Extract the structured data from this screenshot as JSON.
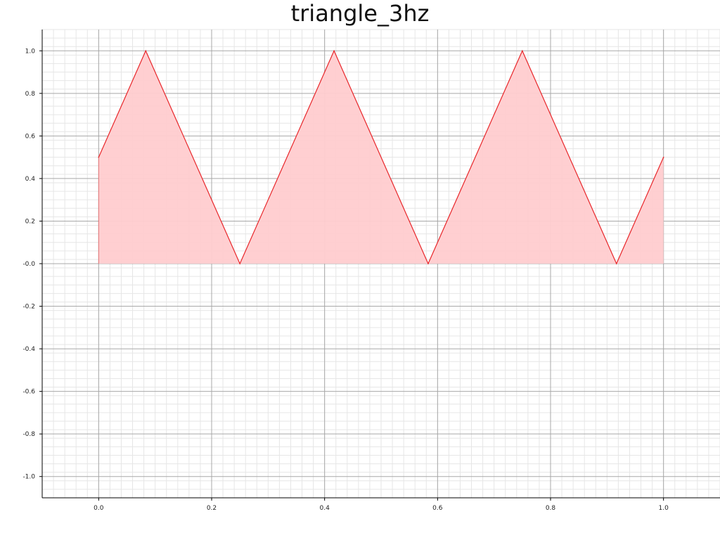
{
  "chart_data": {
    "type": "area",
    "title": "triangle_3hz",
    "xlabel": "",
    "ylabel": "",
    "xlim": [
      -0.1,
      1.1
    ],
    "ylim": [
      -1.1,
      1.1
    ],
    "x_ticks": [
      "0.0",
      "0.2",
      "0.4",
      "0.6",
      "0.8",
      "1.0"
    ],
    "y_ticks": [
      "1.0",
      "0.8",
      "0.6",
      "0.4",
      "0.2",
      "-0.0",
      "-0.2",
      "-0.4",
      "-0.6",
      "-0.8",
      "-1.0"
    ],
    "grid": true,
    "series": [
      {
        "x": [
          0.0,
          0.0833,
          0.25,
          0.4167,
          0.5833,
          0.75,
          0.9167,
          1.0
        ],
        "y": [
          0.5,
          1.0,
          0.0,
          1.0,
          0.0,
          1.0,
          0.0,
          0.5
        ]
      }
    ],
    "colors": {
      "line": "#e8262a",
      "fill": "#ffcccf",
      "grid_major": "#a8a8a8",
      "grid_minor": "#e6e6e6",
      "axis": "#000000"
    }
  }
}
